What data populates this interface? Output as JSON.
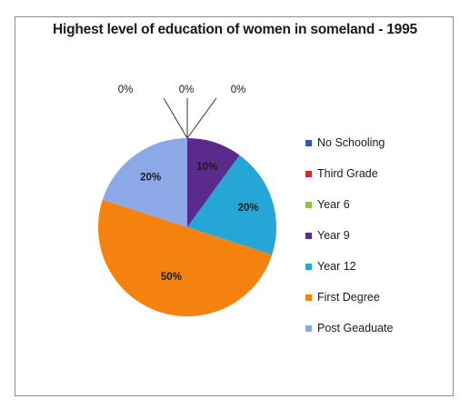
{
  "chart_data": {
    "type": "pie",
    "title": "Highest level of education of women in someland - 1995",
    "categories": [
      "No Schooling",
      "Third Grade",
      "Year 6",
      "Year 9",
      "Year 12",
      "First Degree",
      "Post Geaduate"
    ],
    "values": [
      0,
      0,
      0,
      10,
      20,
      50,
      20
    ],
    "data_labels": [
      "0%",
      "0%",
      "0%",
      "10%",
      "20%",
      "50%",
      "20%"
    ],
    "colors": [
      "#2f57c0",
      "#c0332f",
      "#8fc43c",
      "#5a2a8c",
      "#26a6d6",
      "#f5820f",
      "#8da8e6"
    ],
    "legend_position": "right"
  }
}
